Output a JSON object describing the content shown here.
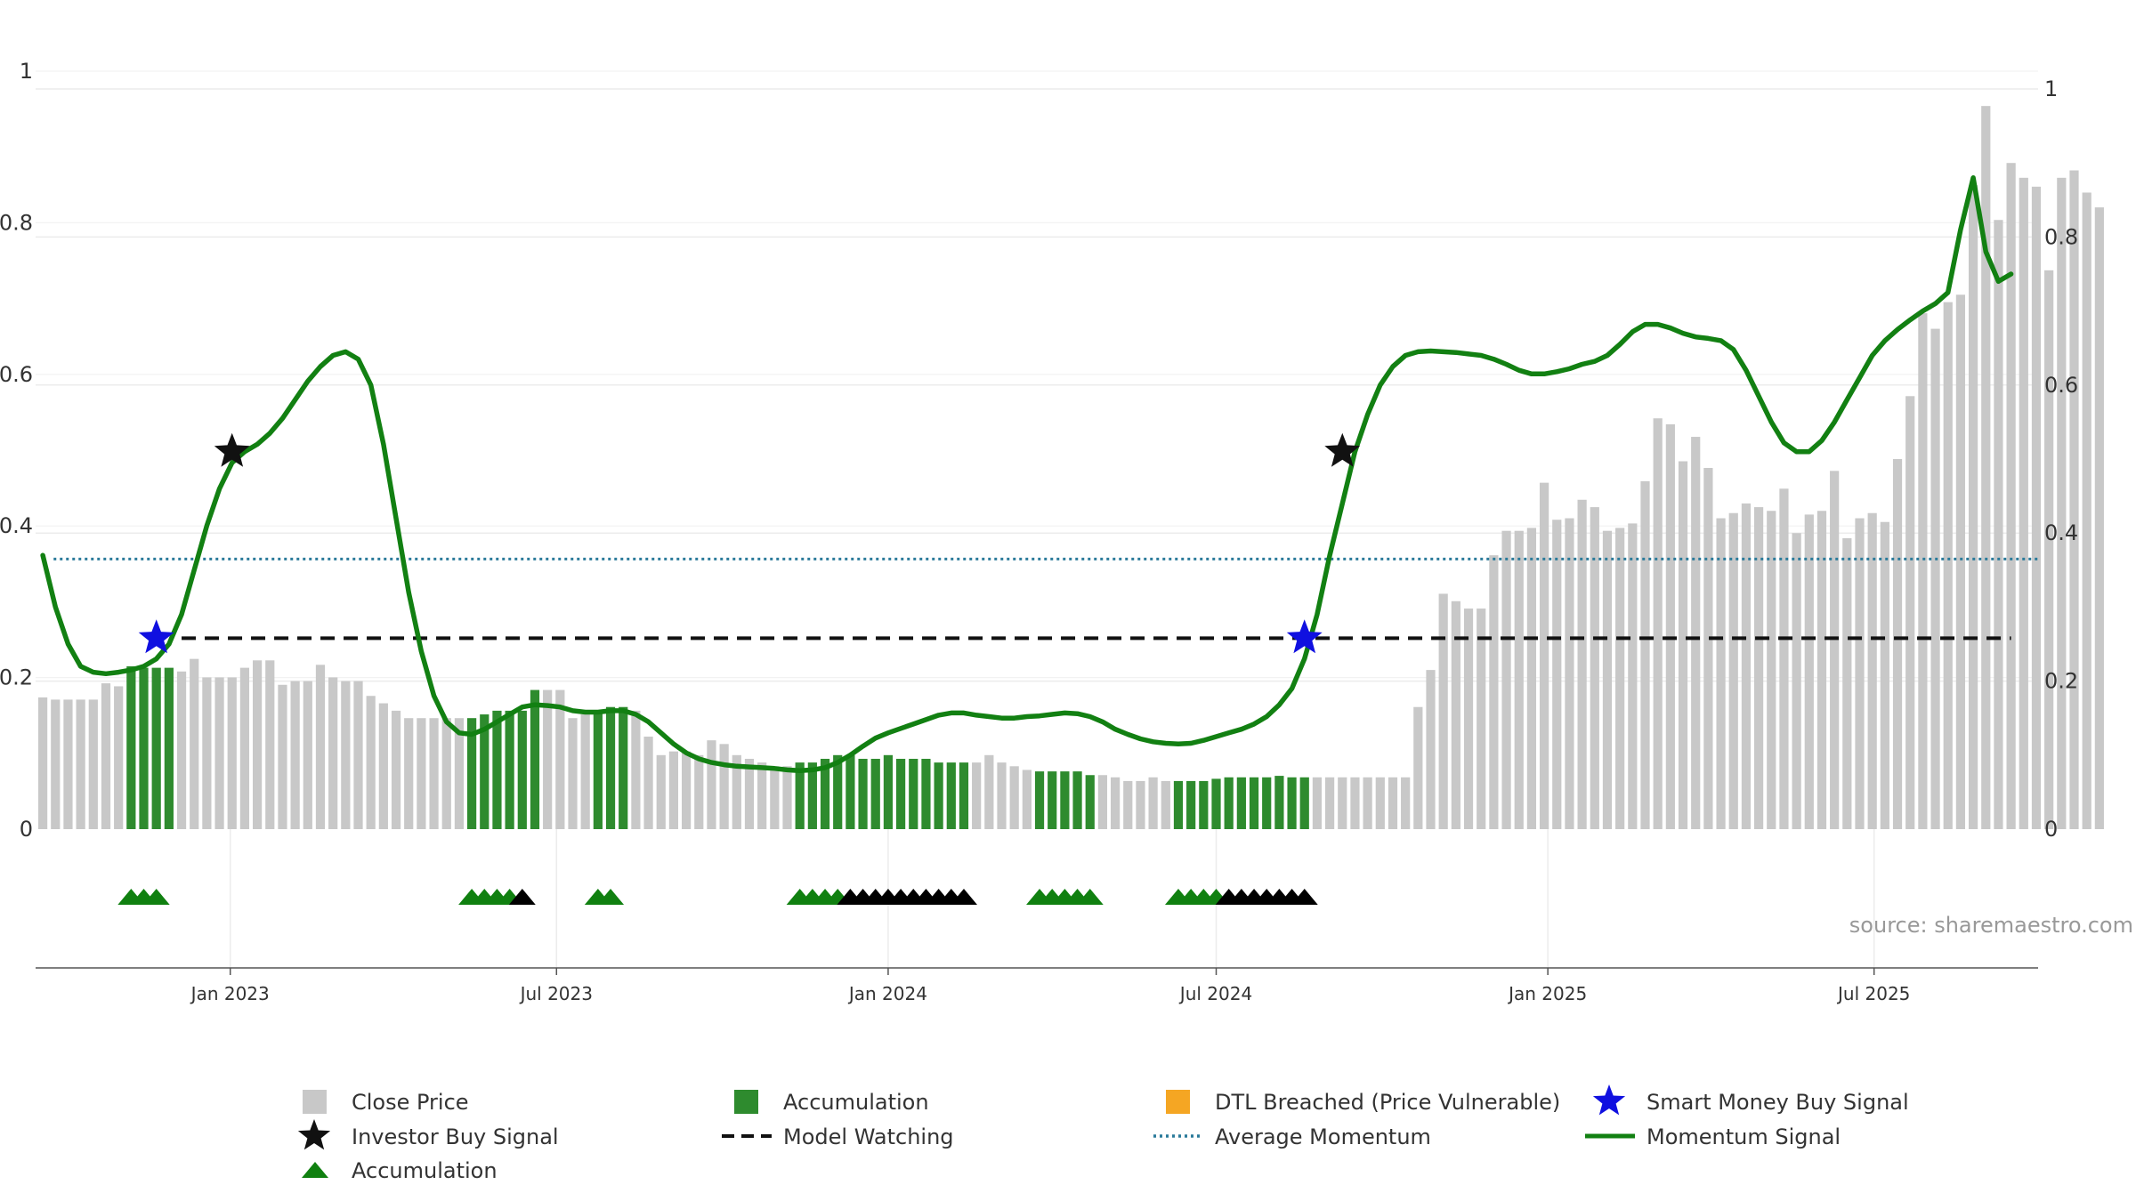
{
  "source_label": "source: sharemaestro.com",
  "chart_data": {
    "type": "bar",
    "x_axis": {
      "ticks": [
        "Jan 2023",
        "Jul 2023",
        "Jan 2024",
        "Jul 2024",
        "Jan 2025",
        "Jul 2025"
      ],
      "range": [
        "2022-09-15",
        "2025-09-30"
      ]
    },
    "y_axis_left": {
      "ticks": [
        "0",
        "0.2",
        "0.4",
        "0.6",
        "0.8",
        "1"
      ],
      "range": [
        0,
        1
      ]
    },
    "y_axis_right": {
      "ticks": [
        "0",
        "0.2",
        "0.4",
        "0.6",
        "0.8",
        "1"
      ],
      "range": [
        0,
        1
      ]
    },
    "grid": true,
    "colors": {
      "close_price": "#c8c8c8",
      "accumulation_bar": "#2e8b2e",
      "accumulation_triangle": "#108010",
      "dtl_breached": "#f5a623",
      "smart_money": "#1010e0",
      "investor_buy": "#111111",
      "model_watching": "#111111",
      "average_momentum": "#2a7a9a",
      "momentum_signal": "#128012"
    },
    "legend": {
      "placement": "bottom",
      "entries": [
        {
          "label": "Close Price",
          "marker": "grey-square"
        },
        {
          "label": "Accumulation",
          "marker": "green-square"
        },
        {
          "label": "DTL Breached (Price Vulnerable)",
          "marker": "orange-square"
        },
        {
          "label": "Smart Money Buy Signal",
          "marker": "blue-star"
        },
        {
          "label": "Investor Buy Signal",
          "marker": "black-star"
        },
        {
          "label": "Model Watching",
          "marker": "black-dashed-line"
        },
        {
          "label": "Average Momentum",
          "marker": "blue-dotted-line"
        },
        {
          "label": "Momentum Signal",
          "marker": "green-line"
        },
        {
          "label": "Accumulation",
          "marker": "green-triangle"
        }
      ]
    },
    "close_price": {
      "start_date": "2022-09-19",
      "interval_days": 7,
      "values": [
        0.178,
        0.175,
        0.175,
        0.175,
        0.175,
        0.197,
        0.193,
        0.22,
        0.218,
        0.218,
        0.218,
        0.213,
        0.23,
        0.205,
        0.205,
        0.205,
        0.218,
        0.228,
        0.228,
        0.195,
        0.2,
        0.2,
        0.222,
        0.205,
        0.2,
        0.2,
        0.18,
        0.17,
        0.16,
        0.15,
        0.15,
        0.15,
        0.15,
        0.15,
        0.15,
        0.155,
        0.16,
        0.16,
        0.16,
        0.188,
        0.188,
        0.188,
        0.15,
        0.155,
        0.16,
        0.165,
        0.165,
        0.16,
        0.125,
        0.1,
        0.105,
        0.105,
        0.1,
        0.12,
        0.115,
        0.1,
        0.095,
        0.09,
        0.085,
        0.085,
        0.09,
        0.09,
        0.095,
        0.1,
        0.1,
        0.095,
        0.095,
        0.1,
        0.095,
        0.095,
        0.095,
        0.09,
        0.09,
        0.09,
        0.09,
        0.1,
        0.09,
        0.085,
        0.08,
        0.078,
        0.078,
        0.078,
        0.078,
        0.073,
        0.073,
        0.07,
        0.065,
        0.065,
        0.07,
        0.065,
        0.065,
        0.065,
        0.065,
        0.068,
        0.07,
        0.07,
        0.07,
        0.07,
        0.072,
        0.07,
        0.07,
        0.07,
        0.07,
        0.07,
        0.07,
        0.07,
        0.07,
        0.07,
        0.07,
        0.165,
        0.215,
        0.318,
        0.308,
        0.298,
        0.298,
        0.37,
        0.403,
        0.403,
        0.407,
        0.468,
        0.418,
        0.42,
        0.445,
        0.435,
        0.403,
        0.407,
        0.413,
        0.47,
        0.555,
        0.547,
        0.497,
        0.53,
        0.488,
        0.42,
        0.427,
        0.44,
        0.435,
        0.43,
        0.46,
        0.4,
        0.425,
        0.43,
        0.484,
        0.393,
        0.42,
        0.427,
        0.415,
        0.5,
        0.585,
        0.697,
        0.676,
        0.712,
        0.722,
        0.87,
        0.977,
        0.823,
        0.9,
        0.88,
        0.868,
        0.755,
        0.88,
        0.89,
        0.86,
        0.84
      ]
    },
    "accumulation_bar_ranges": [
      [
        "2022-11-07",
        "2022-11-28"
      ],
      [
        "2023-05-15",
        "2023-06-19"
      ],
      [
        "2023-07-24",
        "2023-08-07"
      ],
      [
        "2023-11-13",
        "2024-02-12"
      ],
      [
        "2024-03-25",
        "2024-04-22"
      ],
      [
        "2024-06-10",
        "2024-08-19"
      ]
    ],
    "momentum_signal": [
      [
        "2022-09-19",
        0.37
      ],
      [
        "2022-09-26",
        0.3
      ],
      [
        "2022-10-03",
        0.25
      ],
      [
        "2022-10-10",
        0.22
      ],
      [
        "2022-10-17",
        0.212
      ],
      [
        "2022-10-24",
        0.21
      ],
      [
        "2022-10-31",
        0.212
      ],
      [
        "2022-11-07",
        0.215
      ],
      [
        "2022-11-14",
        0.22
      ],
      [
        "2022-11-21",
        0.23
      ],
      [
        "2022-11-28",
        0.25
      ],
      [
        "2022-12-05",
        0.29
      ],
      [
        "2022-12-12",
        0.35
      ],
      [
        "2022-12-19",
        0.41
      ],
      [
        "2022-12-26",
        0.46
      ],
      [
        "2023-01-02",
        0.495
      ],
      [
        "2023-01-09",
        0.51
      ],
      [
        "2023-01-16",
        0.52
      ],
      [
        "2023-01-23",
        0.535
      ],
      [
        "2023-01-30",
        0.555
      ],
      [
        "2023-02-06",
        0.58
      ],
      [
        "2023-02-13",
        0.605
      ],
      [
        "2023-02-20",
        0.625
      ],
      [
        "2023-02-27",
        0.64
      ],
      [
        "2023-03-06",
        0.645
      ],
      [
        "2023-03-13",
        0.635
      ],
      [
        "2023-03-20",
        0.6
      ],
      [
        "2023-03-27",
        0.52
      ],
      [
        "2023-04-03",
        0.42
      ],
      [
        "2023-04-10",
        0.32
      ],
      [
        "2023-04-17",
        0.24
      ],
      [
        "2023-04-24",
        0.18
      ],
      [
        "2023-05-01",
        0.145
      ],
      [
        "2023-05-08",
        0.13
      ],
      [
        "2023-05-15",
        0.128
      ],
      [
        "2023-05-22",
        0.135
      ],
      [
        "2023-05-29",
        0.145
      ],
      [
        "2023-06-05",
        0.155
      ],
      [
        "2023-06-12",
        0.165
      ],
      [
        "2023-06-19",
        0.168
      ],
      [
        "2023-06-26",
        0.167
      ],
      [
        "2023-07-03",
        0.165
      ],
      [
        "2023-07-10",
        0.16
      ],
      [
        "2023-07-17",
        0.158
      ],
      [
        "2023-07-24",
        0.158
      ],
      [
        "2023-07-31",
        0.16
      ],
      [
        "2023-08-07",
        0.16
      ],
      [
        "2023-08-14",
        0.155
      ],
      [
        "2023-08-21",
        0.145
      ],
      [
        "2023-08-28",
        0.13
      ],
      [
        "2023-09-04",
        0.115
      ],
      [
        "2023-09-11",
        0.103
      ],
      [
        "2023-09-18",
        0.095
      ],
      [
        "2023-09-25",
        0.09
      ],
      [
        "2023-10-02",
        0.087
      ],
      [
        "2023-10-09",
        0.085
      ],
      [
        "2023-10-16",
        0.084
      ],
      [
        "2023-10-23",
        0.083
      ],
      [
        "2023-10-30",
        0.082
      ],
      [
        "2023-11-06",
        0.08
      ],
      [
        "2023-11-13",
        0.079
      ],
      [
        "2023-11-20",
        0.08
      ],
      [
        "2023-11-27",
        0.083
      ],
      [
        "2023-12-04",
        0.09
      ],
      [
        "2023-12-11",
        0.1
      ],
      [
        "2023-12-18",
        0.112
      ],
      [
        "2023-12-25",
        0.123
      ],
      [
        "2024-01-01",
        0.13
      ],
      [
        "2024-01-08",
        0.136
      ],
      [
        "2024-01-15",
        0.142
      ],
      [
        "2024-01-22",
        0.148
      ],
      [
        "2024-01-29",
        0.154
      ],
      [
        "2024-02-05",
        0.157
      ],
      [
        "2024-02-12",
        0.157
      ],
      [
        "2024-02-19",
        0.154
      ],
      [
        "2024-02-26",
        0.152
      ],
      [
        "2024-03-04",
        0.15
      ],
      [
        "2024-03-11",
        0.15
      ],
      [
        "2024-03-18",
        0.152
      ],
      [
        "2024-03-25",
        0.153
      ],
      [
        "2024-04-01",
        0.155
      ],
      [
        "2024-04-08",
        0.157
      ],
      [
        "2024-04-15",
        0.156
      ],
      [
        "2024-04-22",
        0.152
      ],
      [
        "2024-04-29",
        0.145
      ],
      [
        "2024-05-06",
        0.135
      ],
      [
        "2024-05-13",
        0.128
      ],
      [
        "2024-05-20",
        0.122
      ],
      [
        "2024-05-27",
        0.118
      ],
      [
        "2024-06-03",
        0.116
      ],
      [
        "2024-06-10",
        0.115
      ],
      [
        "2024-06-17",
        0.116
      ],
      [
        "2024-06-24",
        0.12
      ],
      [
        "2024-07-01",
        0.125
      ],
      [
        "2024-07-08",
        0.13
      ],
      [
        "2024-07-15",
        0.135
      ],
      [
        "2024-07-22",
        0.142
      ],
      [
        "2024-07-29",
        0.152
      ],
      [
        "2024-08-05",
        0.168
      ],
      [
        "2024-08-12",
        0.19
      ],
      [
        "2024-08-19",
        0.23
      ],
      [
        "2024-08-26",
        0.29
      ],
      [
        "2024-09-02",
        0.37
      ],
      [
        "2024-09-09",
        0.44
      ],
      [
        "2024-09-16",
        0.51
      ],
      [
        "2024-09-23",
        0.56
      ],
      [
        "2024-09-30",
        0.6
      ],
      [
        "2024-10-07",
        0.625
      ],
      [
        "2024-10-14",
        0.64
      ],
      [
        "2024-10-21",
        0.645
      ],
      [
        "2024-10-28",
        0.646
      ],
      [
        "2024-11-04",
        0.645
      ],
      [
        "2024-11-11",
        0.644
      ],
      [
        "2024-11-18",
        0.642
      ],
      [
        "2024-11-25",
        0.64
      ],
      [
        "2024-12-02",
        0.635
      ],
      [
        "2024-12-09",
        0.628
      ],
      [
        "2024-12-16",
        0.62
      ],
      [
        "2024-12-23",
        0.615
      ],
      [
        "2024-12-30",
        0.615
      ],
      [
        "2025-01-06",
        0.618
      ],
      [
        "2025-01-13",
        0.622
      ],
      [
        "2025-01-20",
        0.628
      ],
      [
        "2025-01-27",
        0.632
      ],
      [
        "2025-02-03",
        0.64
      ],
      [
        "2025-02-10",
        0.655
      ],
      [
        "2025-02-17",
        0.672
      ],
      [
        "2025-02-24",
        0.682
      ],
      [
        "2025-03-03",
        0.682
      ],
      [
        "2025-03-10",
        0.677
      ],
      [
        "2025-03-17",
        0.67
      ],
      [
        "2025-03-24",
        0.665
      ],
      [
        "2025-03-31",
        0.663
      ],
      [
        "2025-04-07",
        0.66
      ],
      [
        "2025-04-14",
        0.648
      ],
      [
        "2025-04-21",
        0.62
      ],
      [
        "2025-04-28",
        0.585
      ],
      [
        "2025-05-05",
        0.55
      ],
      [
        "2025-05-12",
        0.522
      ],
      [
        "2025-05-19",
        0.51
      ],
      [
        "2025-05-26",
        0.51
      ],
      [
        "2025-06-02",
        0.525
      ],
      [
        "2025-06-09",
        0.55
      ],
      [
        "2025-06-16",
        0.58
      ],
      [
        "2025-06-23",
        0.61
      ],
      [
        "2025-06-30",
        0.64
      ],
      [
        "2025-07-07",
        0.66
      ],
      [
        "2025-07-14",
        0.675
      ],
      [
        "2025-07-21",
        0.688
      ],
      [
        "2025-07-28",
        0.7
      ],
      [
        "2025-08-04",
        0.71
      ],
      [
        "2025-08-11",
        0.725
      ],
      [
        "2025-08-18",
        0.81
      ],
      [
        "2025-08-25",
        0.88
      ],
      [
        "2025-09-01",
        0.78
      ],
      [
        "2025-09-08",
        0.74
      ],
      [
        "2025-09-15",
        0.75
      ]
    ],
    "average_momentum": 0.365,
    "model_watching": {
      "level": 0.258,
      "start": "2022-12-05",
      "end": "2025-09-15"
    },
    "smart_money_buy_signal": [
      [
        "2022-11-21",
        0.258
      ],
      [
        "2024-08-19",
        0.258
      ]
    ],
    "investor_buy_signal": [
      [
        "2023-01-02",
        0.51
      ],
      [
        "2024-09-09",
        0.51
      ]
    ],
    "accumulation_triangles": [
      {
        "date": "2022-11-07",
        "color": "green"
      },
      {
        "date": "2022-11-14",
        "color": "green"
      },
      {
        "date": "2022-11-21",
        "color": "green"
      },
      {
        "date": "2023-05-15",
        "color": "green"
      },
      {
        "date": "2023-05-22",
        "color": "green"
      },
      {
        "date": "2023-05-29",
        "color": "green"
      },
      {
        "date": "2023-06-05",
        "color": "green"
      },
      {
        "date": "2023-06-12",
        "color": "black"
      },
      {
        "date": "2023-07-24",
        "color": "green"
      },
      {
        "date": "2023-07-31",
        "color": "green"
      },
      {
        "date": "2023-11-13",
        "color": "green"
      },
      {
        "date": "2023-11-20",
        "color": "green"
      },
      {
        "date": "2023-11-27",
        "color": "green"
      },
      {
        "date": "2023-12-04",
        "color": "green"
      },
      {
        "date": "2023-12-11",
        "color": "black"
      },
      {
        "date": "2023-12-18",
        "color": "black"
      },
      {
        "date": "2023-12-25",
        "color": "black"
      },
      {
        "date": "2024-01-01",
        "color": "black"
      },
      {
        "date": "2024-01-08",
        "color": "black"
      },
      {
        "date": "2024-01-15",
        "color": "black"
      },
      {
        "date": "2024-01-22",
        "color": "black"
      },
      {
        "date": "2024-01-29",
        "color": "black"
      },
      {
        "date": "2024-02-05",
        "color": "black"
      },
      {
        "date": "2024-02-12",
        "color": "black"
      },
      {
        "date": "2024-03-25",
        "color": "green"
      },
      {
        "date": "2024-04-01",
        "color": "green"
      },
      {
        "date": "2024-04-08",
        "color": "green"
      },
      {
        "date": "2024-04-15",
        "color": "green"
      },
      {
        "date": "2024-04-22",
        "color": "green"
      },
      {
        "date": "2024-06-10",
        "color": "green"
      },
      {
        "date": "2024-06-17",
        "color": "green"
      },
      {
        "date": "2024-06-24",
        "color": "green"
      },
      {
        "date": "2024-07-01",
        "color": "green"
      },
      {
        "date": "2024-07-08",
        "color": "black"
      },
      {
        "date": "2024-07-15",
        "color": "black"
      },
      {
        "date": "2024-07-22",
        "color": "black"
      },
      {
        "date": "2024-07-29",
        "color": "black"
      },
      {
        "date": "2024-08-05",
        "color": "black"
      },
      {
        "date": "2024-08-12",
        "color": "black"
      },
      {
        "date": "2024-08-19",
        "color": "black"
      }
    ]
  }
}
